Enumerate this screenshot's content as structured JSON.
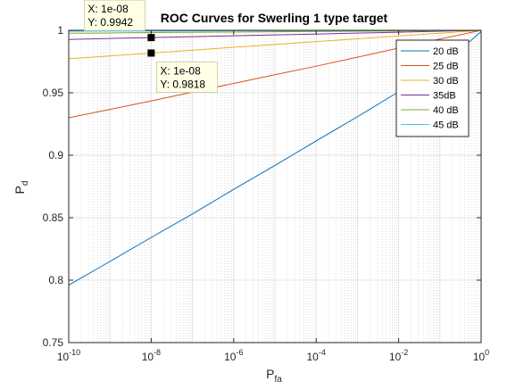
{
  "chart_data": {
    "type": "line",
    "title": "ROC Curves for Swerling 1 type target",
    "xlabel": {
      "main": "P",
      "sub": "fa"
    },
    "ylabel": {
      "main": "P",
      "sub": "d"
    },
    "xscale": "log",
    "xlim": [
      1e-10,
      1
    ],
    "ylim": [
      0.75,
      1
    ],
    "grid": true,
    "minor_grid": true,
    "legend_location": "top-right",
    "x_ticks": [
      {
        "value": 1e-10,
        "base": "10",
        "exp": "-10"
      },
      {
        "value": 1e-08,
        "base": "10",
        "exp": "-8"
      },
      {
        "value": 1e-06,
        "base": "10",
        "exp": "-6"
      },
      {
        "value": 0.0001,
        "base": "10",
        "exp": "-4"
      },
      {
        "value": 0.01,
        "base": "10",
        "exp": "-2"
      },
      {
        "value": 1,
        "base": "10",
        "exp": "0"
      }
    ],
    "y_ticks": [
      {
        "value": 0.75,
        "label": "0.75"
      },
      {
        "value": 0.8,
        "label": "0.8"
      },
      {
        "value": 0.85,
        "label": "0.85"
      },
      {
        "value": 0.9,
        "label": "0.9"
      },
      {
        "value": 0.95,
        "label": "0.95"
      },
      {
        "value": 1,
        "label": "1"
      }
    ],
    "x": [
      1e-10,
      1e-09,
      1e-08,
      1e-07,
      1e-06,
      1e-05,
      0.0001,
      0.001,
      0.01,
      0.1,
      1
    ],
    "series": [
      {
        "name": "20 dB",
        "color": "#0072BD",
        "values": [
          0.796,
          0.815,
          0.8342,
          0.853,
          0.8727,
          0.8918,
          0.9115,
          0.9308,
          0.9508,
          0.97,
          0.999
        ]
      },
      {
        "name": "25 dB",
        "color": "#D95319",
        "values": [
          0.93,
          0.9367,
          0.9435,
          0.9505,
          0.9575,
          0.9645,
          0.9713,
          0.9785,
          0.9858,
          0.993,
          1.0
        ]
      },
      {
        "name": "30 dB",
        "color": "#EDB120",
        "values": [
          0.9773,
          0.9795,
          0.9818,
          0.9841,
          0.9864,
          0.9887,
          0.991,
          0.9932,
          0.9955,
          0.9977,
          1.0
        ]
      },
      {
        "name": "35dB",
        "color": "#7E2F8E",
        "values": [
          0.9927,
          0.9935,
          0.9942,
          0.9949,
          0.9956,
          0.9963,
          0.997,
          0.9978,
          0.9985,
          0.9993,
          1.0
        ]
      },
      {
        "name": "40 dB",
        "color": "#77AC30",
        "values": [
          0.9977,
          0.9979,
          0.9982,
          0.9984,
          0.9986,
          0.9988,
          0.9991,
          0.9993,
          0.9995,
          0.9998,
          1.0
        ]
      },
      {
        "name": "45 dB",
        "color": "#4DBEEE",
        "values": [
          0.9993,
          0.9994,
          0.9994,
          0.9995,
          0.9996,
          0.9996,
          0.9997,
          0.9998,
          0.9999,
          0.9999,
          1.0
        ]
      }
    ],
    "annotations": [
      {
        "x": 1e-08,
        "y": 0.9942,
        "x_text": "X: 1e-08",
        "y_text": "Y: 0.9942",
        "box": "above-left"
      },
      {
        "x": 1e-08,
        "y": 0.9818,
        "x_text": "X: 1e-08",
        "y_text": "Y: 0.9818",
        "box": "below-right"
      }
    ]
  }
}
